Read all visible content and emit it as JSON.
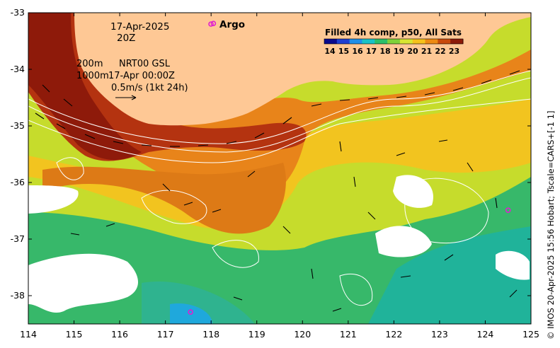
{
  "map": {
    "date": "17-Apr-2025",
    "time": "20Z",
    "legend_argo": "Argo",
    "product": "Filled 4h comp, p50, All Sats",
    "contours": {
      "line1_depth": "200m",
      "line1_source": "NRT00 GSL",
      "line2_depth": "1000m",
      "line2_date": "17-Apr 00:00Z"
    },
    "velocity_scale": "0.5m/s (1kt 24h)",
    "credit": "© IMOS 20-Apr-2025 15:56 Hobart; Tscale=CARS+[-1 1]",
    "colorbar_ticks": [
      "14",
      "15",
      "16",
      "17",
      "18",
      "19",
      "20",
      "21",
      "22",
      "23"
    ],
    "colorbar_colors": [
      "#0a0a8c",
      "#1f3fd1",
      "#1e8fe8",
      "#19c2c7",
      "#2bbf6a",
      "#7fd23a",
      "#d8e632",
      "#f5c21b",
      "#ed8a12",
      "#c84a0c",
      "#8c1a08"
    ],
    "x_ticks": [
      "114",
      "115",
      "116",
      "117",
      "118",
      "119",
      "120",
      "121",
      "122",
      "123",
      "124",
      "125"
    ],
    "y_ticks": [
      "-33",
      "-34",
      "-35",
      "-36",
      "-37",
      "-38"
    ],
    "land_color": "#fec895",
    "argo_color": "#e01fd0",
    "argo_floats": [
      {
        "lon": 118.05,
        "lat": -33.19
      },
      {
        "lon": 124.5,
        "lat": -36.49
      },
      {
        "lon": 117.55,
        "lat": -38.29
      }
    ]
  }
}
